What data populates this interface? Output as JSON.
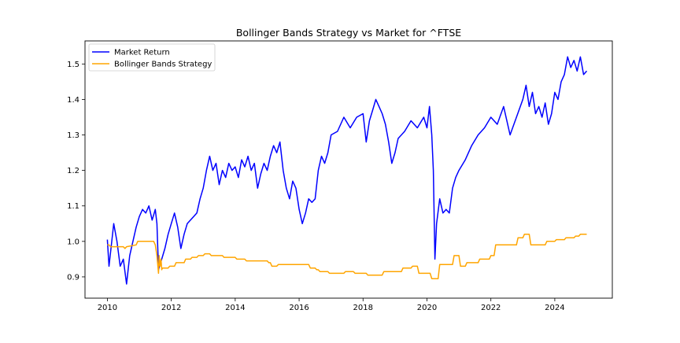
{
  "chart_data": {
    "type": "line",
    "title": "Bollinger Bands Strategy vs Market for ^FTSE",
    "xlabel": "",
    "ylabel": "",
    "xlim": [
      2009.3,
      2025.8
    ],
    "ylim": [
      0.84,
      1.565
    ],
    "x_ticks": [
      2010,
      2012,
      2014,
      2016,
      2018,
      2020,
      2022,
      2024
    ],
    "x_tick_labels": [
      "2010",
      "2012",
      "2014",
      "2016",
      "2018",
      "2020",
      "2022",
      "2024"
    ],
    "y_ticks": [
      0.9,
      1.0,
      1.1,
      1.2,
      1.3,
      1.4,
      1.5
    ],
    "y_tick_labels": [
      "0.9",
      "1.0",
      "1.1",
      "1.2",
      "1.3",
      "1.4",
      "1.5"
    ],
    "grid": false,
    "legend_placement": "upper-left",
    "series": [
      {
        "name": "Market Return",
        "color": "#0000ff",
        "x": [
          2010.0,
          2010.05,
          2010.1,
          2010.2,
          2010.3,
          2010.4,
          2010.5,
          2010.6,
          2010.7,
          2010.8,
          2010.9,
          2011.0,
          2011.1,
          2011.2,
          2011.3,
          2011.4,
          2011.5,
          2011.55,
          2011.6,
          2011.7,
          2011.8,
          2011.9,
          2012.0,
          2012.1,
          2012.2,
          2012.3,
          2012.4,
          2012.5,
          2012.6,
          2012.7,
          2012.8,
          2012.9,
          2013.0,
          2013.1,
          2013.2,
          2013.3,
          2013.4,
          2013.5,
          2013.6,
          2013.7,
          2013.8,
          2013.9,
          2014.0,
          2014.1,
          2014.2,
          2014.3,
          2014.4,
          2014.5,
          2014.6,
          2014.7,
          2014.8,
          2014.9,
          2015.0,
          2015.1,
          2015.2,
          2015.3,
          2015.4,
          2015.5,
          2015.6,
          2015.7,
          2015.8,
          2015.9,
          2016.0,
          2016.1,
          2016.2,
          2016.3,
          2016.4,
          2016.5,
          2016.6,
          2016.7,
          2016.8,
          2016.9,
          2017.0,
          2017.2,
          2017.4,
          2017.6,
          2017.8,
          2018.0,
          2018.1,
          2018.2,
          2018.3,
          2018.4,
          2018.5,
          2018.6,
          2018.7,
          2018.8,
          2018.9,
          2019.0,
          2019.1,
          2019.3,
          2019.5,
          2019.7,
          2019.9,
          2020.0,
          2020.08,
          2020.15,
          2020.2,
          2020.25,
          2020.3,
          2020.4,
          2020.5,
          2020.6,
          2020.7,
          2020.8,
          2020.9,
          2021.0,
          2021.2,
          2021.4,
          2021.6,
          2021.8,
          2022.0,
          2022.2,
          2022.4,
          2022.6,
          2022.8,
          2023.0,
          2023.1,
          2023.2,
          2023.3,
          2023.4,
          2023.5,
          2023.6,
          2023.7,
          2023.8,
          2023.9,
          2024.0,
          2024.1,
          2024.2,
          2024.3,
          2024.4,
          2024.5,
          2024.6,
          2024.7,
          2024.8,
          2024.9,
          2025.0
        ],
        "y": [
          1.005,
          0.93,
          0.97,
          1.05,
          1.0,
          0.93,
          0.95,
          0.88,
          0.96,
          1.0,
          1.04,
          1.07,
          1.09,
          1.08,
          1.1,
          1.06,
          1.09,
          1.05,
          0.92,
          0.95,
          0.98,
          1.02,
          1.05,
          1.08,
          1.04,
          0.98,
          1.02,
          1.05,
          1.06,
          1.07,
          1.08,
          1.12,
          1.15,
          1.2,
          1.24,
          1.2,
          1.22,
          1.16,
          1.2,
          1.18,
          1.22,
          1.2,
          1.21,
          1.18,
          1.23,
          1.21,
          1.24,
          1.2,
          1.22,
          1.15,
          1.19,
          1.22,
          1.2,
          1.24,
          1.27,
          1.25,
          1.28,
          1.2,
          1.15,
          1.12,
          1.17,
          1.15,
          1.09,
          1.05,
          1.08,
          1.12,
          1.11,
          1.12,
          1.2,
          1.24,
          1.22,
          1.25,
          1.3,
          1.31,
          1.35,
          1.32,
          1.35,
          1.36,
          1.28,
          1.34,
          1.37,
          1.4,
          1.38,
          1.36,
          1.33,
          1.28,
          1.22,
          1.25,
          1.29,
          1.31,
          1.34,
          1.32,
          1.35,
          1.32,
          1.38,
          1.3,
          1.2,
          0.95,
          1.05,
          1.12,
          1.08,
          1.09,
          1.08,
          1.15,
          1.18,
          1.2,
          1.23,
          1.27,
          1.3,
          1.32,
          1.35,
          1.33,
          1.38,
          1.3,
          1.35,
          1.4,
          1.44,
          1.38,
          1.42,
          1.36,
          1.38,
          1.35,
          1.39,
          1.33,
          1.36,
          1.42,
          1.4,
          1.45,
          1.47,
          1.52,
          1.49,
          1.51,
          1.48,
          1.52,
          1.47,
          1.48
        ]
      },
      {
        "name": "Bollinger Bands Strategy",
        "color": "#ffa500",
        "x": [
          2010.0,
          2010.05,
          2010.1,
          2010.5,
          2010.55,
          2010.6,
          2010.9,
          2010.95,
          2011.45,
          2011.5,
          2011.55,
          2011.6,
          2011.62,
          2011.65,
          2011.68,
          2011.7,
          2011.72,
          2011.9,
          2011.95,
          2012.1,
          2012.15,
          2012.4,
          2012.45,
          2012.6,
          2012.65,
          2012.8,
          2012.85,
          2013.0,
          2013.05,
          2013.2,
          2013.25,
          2013.6,
          2013.65,
          2014.0,
          2014.05,
          2014.3,
          2014.35,
          2015.0,
          2015.05,
          2015.1,
          2015.15,
          2015.3,
          2015.35,
          2016.3,
          2016.35,
          2016.5,
          2016.55,
          2016.6,
          2016.65,
          2016.9,
          2016.95,
          2017.4,
          2017.45,
          2017.7,
          2017.75,
          2018.1,
          2018.15,
          2018.6,
          2018.65,
          2019.2,
          2019.25,
          2019.5,
          2019.55,
          2019.7,
          2019.75,
          2020.1,
          2020.15,
          2020.35,
          2020.4,
          2020.8,
          2020.85,
          2021.0,
          2021.05,
          2021.2,
          2021.25,
          2021.6,
          2021.65,
          2021.95,
          2022.0,
          2022.1,
          2022.15,
          2022.8,
          2022.85,
          2023.0,
          2023.05,
          2023.2,
          2023.25,
          2023.7,
          2023.75,
          2024.0,
          2024.05,
          2024.3,
          2024.35,
          2024.6,
          2024.65,
          2024.75,
          2024.8,
          2025.0
        ],
        "y": [
          0.99,
          0.99,
          0.985,
          0.985,
          0.98,
          0.985,
          0.99,
          1.0,
          1.0,
          0.99,
          0.96,
          0.91,
          0.96,
          0.93,
          0.95,
          0.92,
          0.925,
          0.925,
          0.93,
          0.93,
          0.94,
          0.94,
          0.95,
          0.95,
          0.955,
          0.955,
          0.96,
          0.96,
          0.965,
          0.965,
          0.96,
          0.96,
          0.955,
          0.955,
          0.95,
          0.95,
          0.945,
          0.945,
          0.94,
          0.94,
          0.93,
          0.93,
          0.935,
          0.935,
          0.925,
          0.925,
          0.92,
          0.92,
          0.915,
          0.915,
          0.91,
          0.91,
          0.915,
          0.915,
          0.91,
          0.91,
          0.905,
          0.905,
          0.915,
          0.915,
          0.925,
          0.925,
          0.93,
          0.93,
          0.91,
          0.91,
          0.895,
          0.895,
          0.935,
          0.935,
          0.96,
          0.96,
          0.93,
          0.93,
          0.94,
          0.94,
          0.95,
          0.95,
          0.96,
          0.96,
          0.99,
          0.99,
          1.01,
          1.01,
          1.02,
          1.02,
          0.99,
          0.99,
          1.0,
          1.0,
          1.005,
          1.005,
          1.01,
          1.01,
          1.015,
          1.015,
          1.02,
          1.02
        ]
      }
    ]
  }
}
